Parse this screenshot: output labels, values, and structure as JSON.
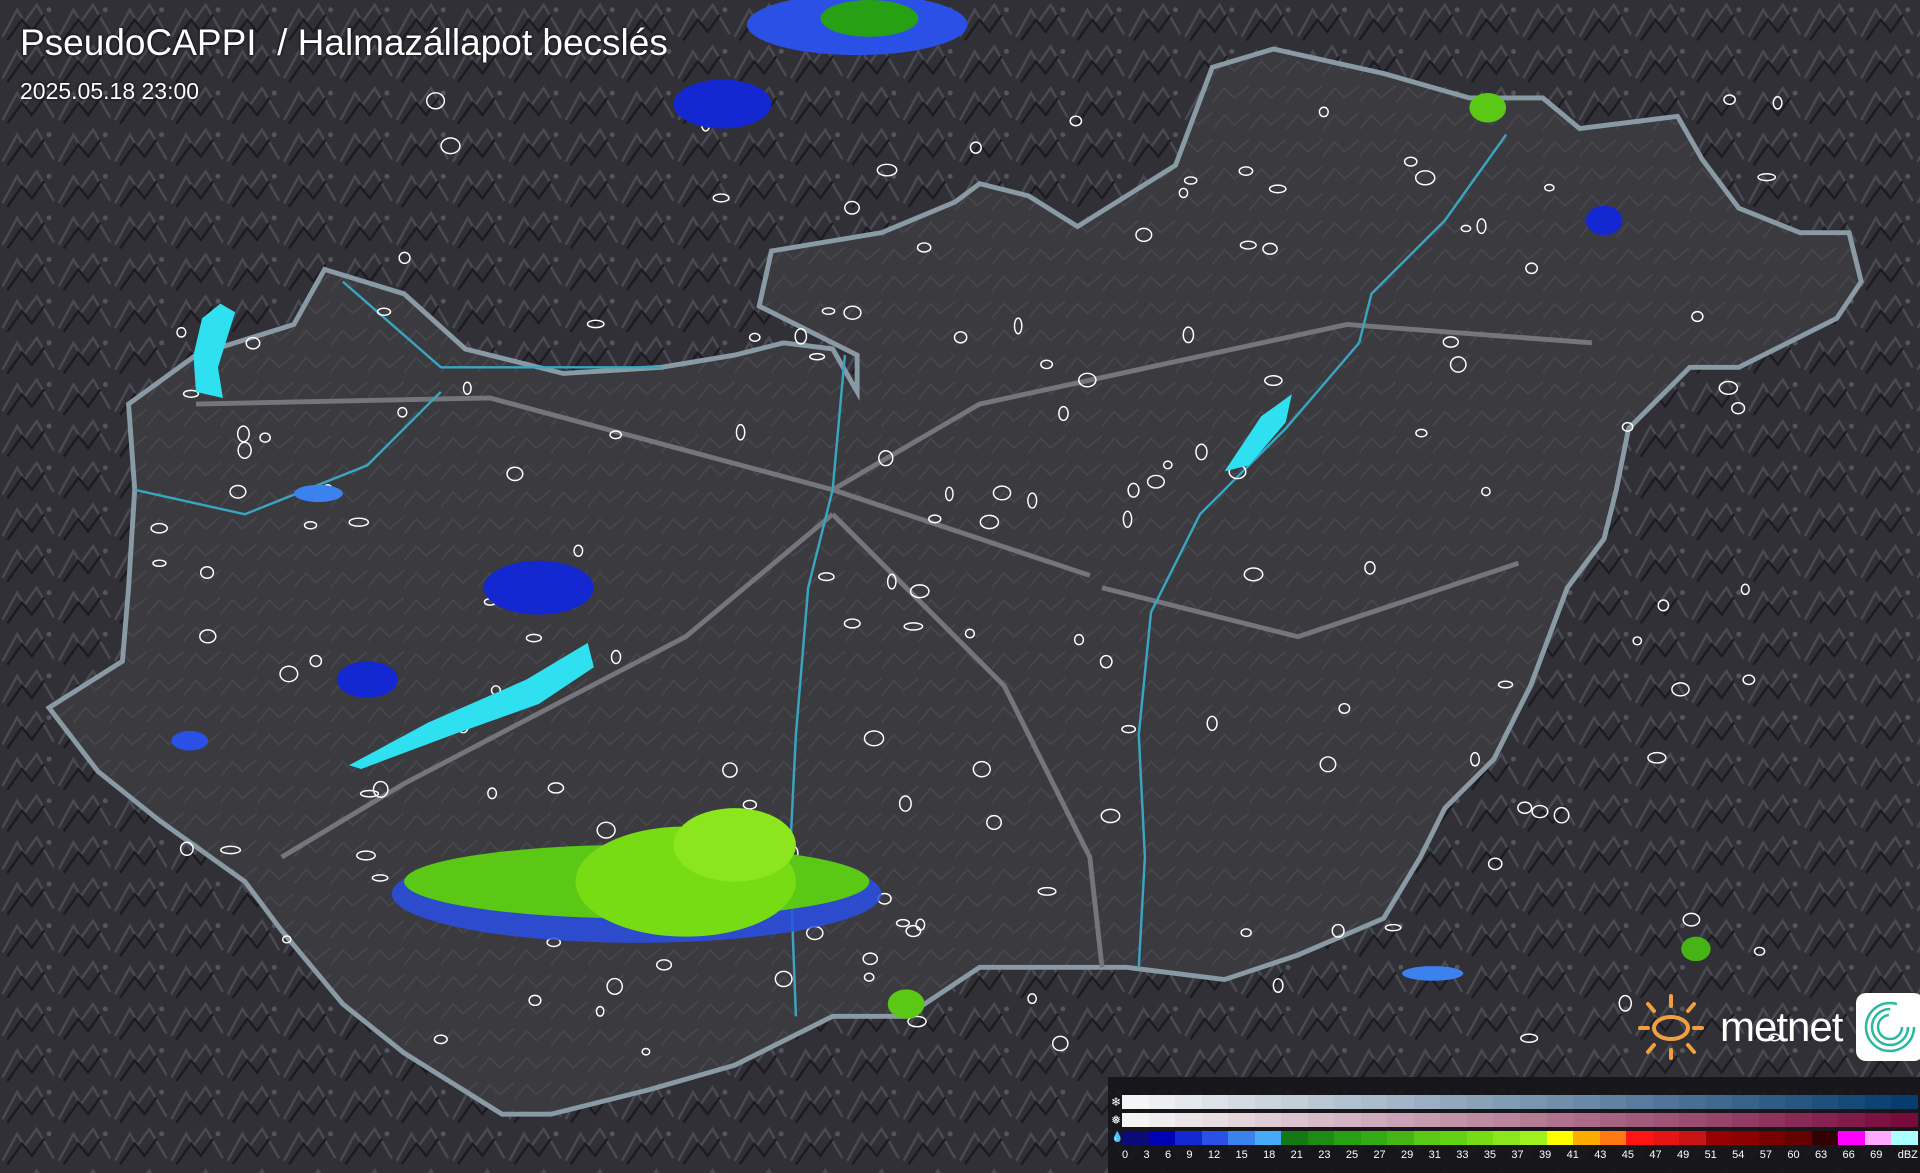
{
  "header": {
    "title": "PseudoCAPPI  / Halmazállapot becslés",
    "timestamp": "2025.05.18 23:00"
  },
  "logo": {
    "brand": "metnet",
    "icon": "sun-icon",
    "app_icon": "spiral-icon",
    "sun_color": "#f0a040"
  },
  "map": {
    "background": "#2b2b2f",
    "country_fill": "#3a3a3f",
    "border_color": "#8a9aa5",
    "river_color": "#3aa5c0",
    "lake_color": "#2ee0f0",
    "settlement_outline": "#ffffff"
  },
  "legend": {
    "rows": [
      {
        "type": "snow",
        "icon": "snowflake-icon",
        "glyph": "❄",
        "from": "#f5f5f5",
        "to": "#063c6e"
      },
      {
        "type": "mixed",
        "icon": "mixed-precip-icon",
        "glyph": "❅",
        "from": "#f5f5f5",
        "to": "#780a3c"
      },
      {
        "type": "rain",
        "icon": "raindrop-icon",
        "glyph": "💧"
      }
    ],
    "rain_colors": [
      "#0a0a78",
      "#0000b4",
      "#1428d2",
      "#2a50e6",
      "#3c82ee",
      "#46aaf8",
      "#147814",
      "#1e8c14",
      "#28a014",
      "#34aa14",
      "#46b414",
      "#5ac814",
      "#64d214",
      "#78dc14",
      "#8ce61e",
      "#a0f01e",
      "#ffff00",
      "#ffaa00",
      "#ff7814",
      "#ff1414",
      "#e61414",
      "#c81414",
      "#960000",
      "#8c0000",
      "#780000",
      "#640000",
      "#320000",
      "#ff00ff",
      "#ffaaff",
      "#aaffff"
    ],
    "labels": [
      "0",
      "3",
      "6",
      "9",
      "12",
      "15",
      "18",
      "21",
      "23",
      "25",
      "27",
      "29",
      "31",
      "33",
      "35",
      "37",
      "39",
      "41",
      "43",
      "45",
      "47",
      "49",
      "51",
      "54",
      "57",
      "60",
      "63",
      "66",
      "69",
      "dBZ"
    ]
  }
}
